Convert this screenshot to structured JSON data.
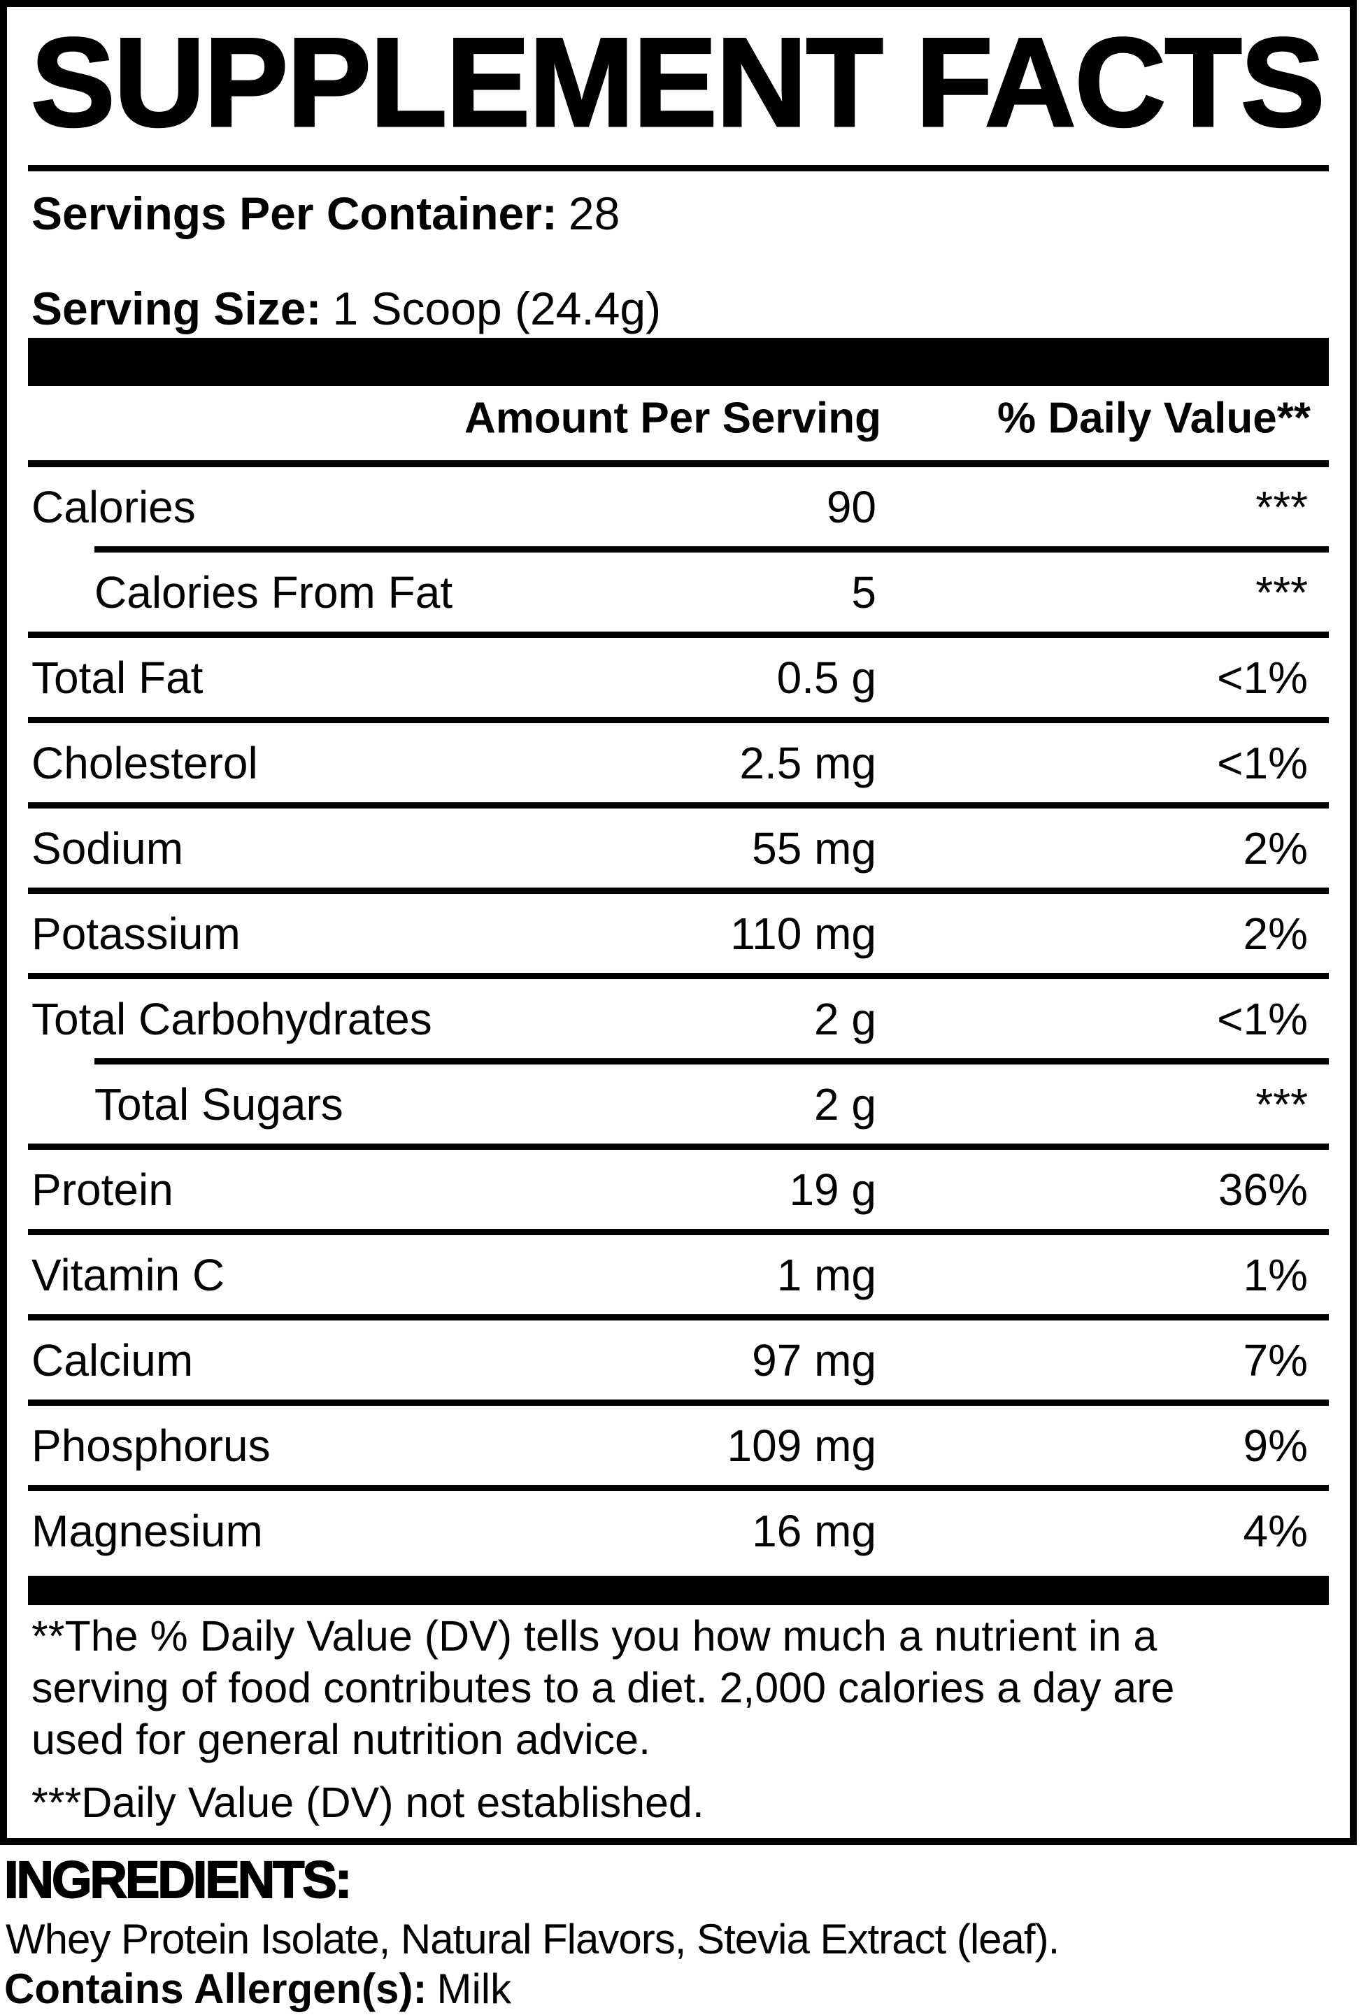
{
  "label": {
    "title": "SUPPLEMENT FACTS",
    "servings_per_container": {
      "label": "Servings Per Container:",
      "value": "28"
    },
    "serving_size": {
      "label": "Serving Size:",
      "value": "1 Scoop (24.4g)"
    },
    "columns": {
      "amount": "Amount Per Serving",
      "dv": "% Daily Value**"
    },
    "rows": [
      {
        "name": "Calories",
        "amount": "90",
        "dv": "***",
        "indent": false
      },
      {
        "name": "Calories From Fat",
        "amount": "5",
        "dv": "***",
        "indent": true
      },
      {
        "name": "Total Fat",
        "amount": "0.5 g",
        "dv": "<1%",
        "indent": false
      },
      {
        "name": "Cholesterol",
        "amount": "2.5 mg",
        "dv": "<1%",
        "indent": false
      },
      {
        "name": "Sodium",
        "amount": "55 mg",
        "dv": "2%",
        "indent": false
      },
      {
        "name": "Potassium",
        "amount": "110 mg",
        "dv": "2%",
        "indent": false
      },
      {
        "name": "Total Carbohydrates",
        "amount": "2 g",
        "dv": "<1%",
        "indent": false
      },
      {
        "name": "Total Sugars",
        "amount": "2 g",
        "dv": "***",
        "indent": true
      },
      {
        "name": "Protein",
        "amount": "19 g",
        "dv": "36%",
        "indent": false
      },
      {
        "name": "Vitamin C",
        "amount": "1 mg",
        "dv": "1%",
        "indent": false
      },
      {
        "name": "Calcium",
        "amount": "97 mg",
        "dv": "7%",
        "indent": false
      },
      {
        "name": "Phosphorus",
        "amount": "109 mg",
        "dv": "9%",
        "indent": false
      },
      {
        "name": "Magnesium",
        "amount": "16 mg",
        "dv": "4%",
        "indent": false
      }
    ],
    "footnote_dv": {
      "lines": [
        "**The % Daily Value (DV) tells you how much a nutrient in a",
        "serving of food contributes to a diet. 2,000 calories a day are",
        "used for general nutrition advice."
      ],
      "not_established": "***Daily Value (DV) not established."
    }
  },
  "ingredients": {
    "heading": "INGREDIENTS:",
    "list": "Whey Protein Isolate, Natural Flavors, Stevia Extract (leaf).",
    "allergen_label": "Contains Allergen(s):",
    "allergen_value": "Milk"
  },
  "colors": {
    "ink": "#000000",
    "paper": "#ffffff"
  }
}
